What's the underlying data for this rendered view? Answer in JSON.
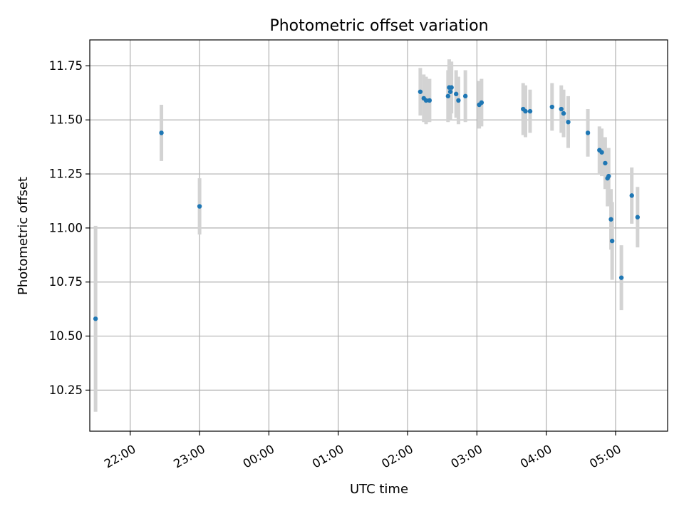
{
  "chart_data": {
    "type": "scatter",
    "title": "Photometric offset variation",
    "xlabel": "UTC time",
    "ylabel": "Photometric offset",
    "x_format": "HH:MM (UTC)",
    "xlim": [
      "21:25",
      "05:45"
    ],
    "ylim": [
      10.06,
      11.87
    ],
    "x_ticks": [
      "22:00",
      "23:00",
      "00:00",
      "01:00",
      "02:00",
      "03:00",
      "04:00",
      "05:00"
    ],
    "y_ticks": [
      "10.25",
      "10.50",
      "10.75",
      "11.00",
      "11.25",
      "11.50",
      "11.75"
    ],
    "grid": true,
    "legend": "none",
    "colors": {
      "points": "#1f77b4",
      "error_bars": "#d3d3d3",
      "grid": "#b0b0b0"
    },
    "points": [
      {
        "x": "21:30",
        "y": 10.58,
        "err": 0.43
      },
      {
        "x": "22:27",
        "y": 11.44,
        "err": 0.13
      },
      {
        "x": "23:00",
        "y": 11.1,
        "err": 0.13
      },
      {
        "x": "02:11",
        "y": 11.63,
        "err": 0.11
      },
      {
        "x": "02:14",
        "y": 11.6,
        "err": 0.11
      },
      {
        "x": "02:16",
        "y": 11.59,
        "err": 0.11
      },
      {
        "x": "02:19",
        "y": 11.59,
        "err": 0.1
      },
      {
        "x": "02:35",
        "y": 11.61,
        "err": 0.12
      },
      {
        "x": "02:36",
        "y": 11.65,
        "err": 0.13
      },
      {
        "x": "02:37",
        "y": 11.63,
        "err": 0.13
      },
      {
        "x": "02:38",
        "y": 11.65,
        "err": 0.12
      },
      {
        "x": "02:42",
        "y": 11.62,
        "err": 0.11
      },
      {
        "x": "02:44",
        "y": 11.59,
        "err": 0.11
      },
      {
        "x": "02:50",
        "y": 11.61,
        "err": 0.12
      },
      {
        "x": "03:02",
        "y": 11.57,
        "err": 0.11
      },
      {
        "x": "03:04",
        "y": 11.58,
        "err": 0.11
      },
      {
        "x": "03:40",
        "y": 11.55,
        "err": 0.12
      },
      {
        "x": "03:42",
        "y": 11.54,
        "err": 0.12
      },
      {
        "x": "03:46",
        "y": 11.54,
        "err": 0.1
      },
      {
        "x": "04:05",
        "y": 11.56,
        "err": 0.11
      },
      {
        "x": "04:13",
        "y": 11.55,
        "err": 0.11
      },
      {
        "x": "04:15",
        "y": 11.53,
        "err": 0.11
      },
      {
        "x": "04:19",
        "y": 11.49,
        "err": 0.12
      },
      {
        "x": "04:36",
        "y": 11.44,
        "err": 0.11
      },
      {
        "x": "04:46",
        "y": 11.36,
        "err": 0.11
      },
      {
        "x": "04:48",
        "y": 11.35,
        "err": 0.11
      },
      {
        "x": "04:51",
        "y": 11.3,
        "err": 0.12
      },
      {
        "x": "04:53",
        "y": 11.23,
        "err": 0.13
      },
      {
        "x": "04:54",
        "y": 11.24,
        "err": 0.13
      },
      {
        "x": "04:56",
        "y": 11.04,
        "err": 0.14
      },
      {
        "x": "04:57",
        "y": 10.94,
        "err": 0.18
      },
      {
        "x": "05:05",
        "y": 10.77,
        "err": 0.15
      },
      {
        "x": "05:14",
        "y": 11.15,
        "err": 0.13
      },
      {
        "x": "05:19",
        "y": 11.05,
        "err": 0.14
      }
    ]
  }
}
